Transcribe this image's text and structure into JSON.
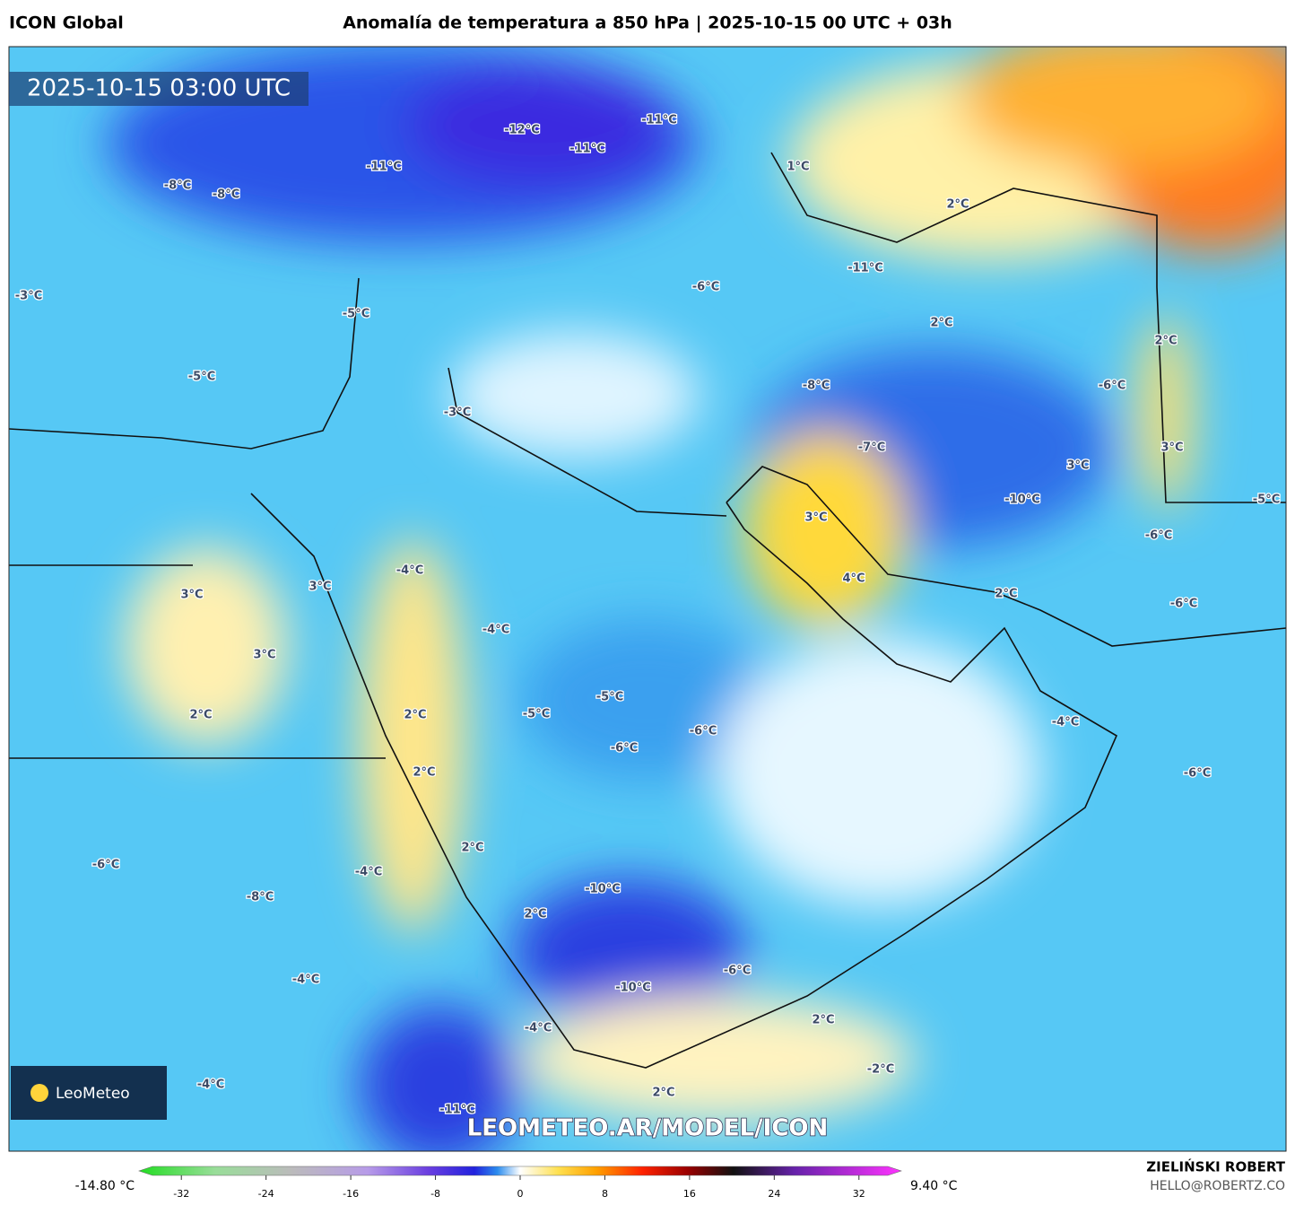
{
  "header": {
    "model": "ICON Global",
    "title": "Anomalía de temperatura a 850 hPa | 2025-10-15 00 UTC + 03h"
  },
  "map": {
    "timestamp": "2025-10-15 03:00 UTC",
    "watermark": "LEOMETEO.AR/MODEL/ICON",
    "logo": "LeoMeteo",
    "labels": [
      "-12°C",
      "-11°C",
      "-11°C",
      "-11°C",
      "-8°C",
      "-8°C",
      "-3°C",
      "-5°C",
      "-5°C",
      "-3°C",
      "1°C",
      "2°C",
      "-11°C",
      "-6°C",
      "2°C",
      "2°C",
      "-8°C",
      "-6°C",
      "-7°C",
      "3°C",
      "3°C",
      "-10°C",
      "3°C",
      "-5°C",
      "-6°C",
      "4°C",
      "2°C",
      "-6°C",
      "3°C",
      "-4°C",
      "3°C",
      "3°C",
      "-4°C",
      "2°C",
      "2°C",
      "-5°C",
      "-5°C",
      "-6°C",
      "-6°C",
      "-4°C",
      "-6°C",
      "2°C",
      "2°C",
      "-6°C",
      "-4°C",
      "-8°C",
      "-10°C",
      "2°C",
      "-6°C",
      "-4°C",
      "-10°C",
      "2°C",
      "-4°C",
      "-2°C",
      "2°C",
      "-4°C",
      "-11°C"
    ]
  },
  "colorbar": {
    "min_label": "-14.80 °C",
    "max_label": "9.40 °C",
    "range": [
      -36,
      36
    ],
    "ticks": [
      -32,
      -24,
      -16,
      -8,
      0,
      8,
      16,
      24,
      32
    ]
  },
  "footer": {
    "author": "ZIELIŃSKI ROBERT",
    "email": "HELLO@ROBERTZ.CO"
  }
}
